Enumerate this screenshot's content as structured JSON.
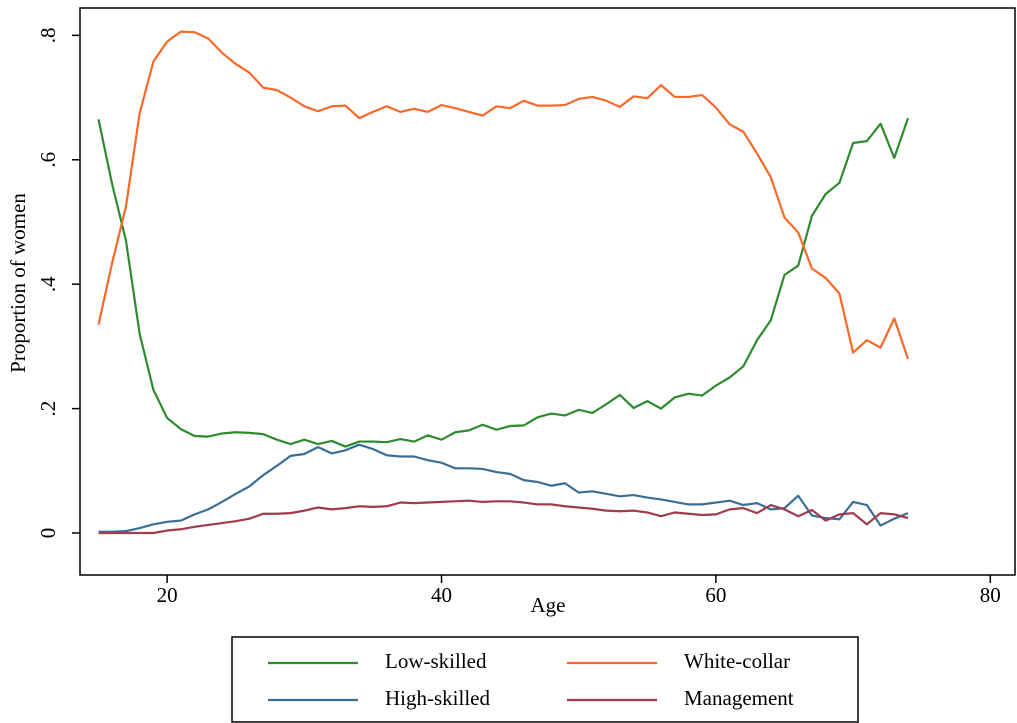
{
  "chart_data": {
    "type": "line",
    "x_label": "Age",
    "y_label": "Proportion of women",
    "xlim": [
      13.65,
      81.8
    ],
    "ylim": [
      -0.0675,
      0.844
    ],
    "xticks": [
      20,
      40,
      60,
      80
    ],
    "yticks": [
      0,
      {
        "value": 0.2,
        "label": ".2"
      },
      {
        "value": 0.4,
        "label": ".4"
      },
      {
        "value": 0.6,
        "label": ".6"
      },
      {
        "value": 0.8,
        "label": ".8"
      }
    ],
    "x": [
      15,
      16,
      17,
      18,
      19,
      20,
      21,
      22,
      23,
      24,
      25,
      26,
      27,
      28,
      29,
      30,
      31,
      32,
      33,
      34,
      35,
      36,
      37,
      38,
      39,
      40,
      41,
      42,
      43,
      44,
      45,
      46,
      47,
      48,
      49,
      50,
      51,
      52,
      53,
      54,
      55,
      56,
      57,
      58,
      59,
      60,
      61,
      62,
      63,
      64,
      65,
      66,
      67,
      68,
      69,
      70,
      71,
      72,
      73,
      74
    ],
    "series": [
      {
        "name": "Low-skilled",
        "color": "#2e8b2e",
        "values": [
          0.665,
          0.56,
          0.47,
          0.32,
          0.23,
          0.185,
          0.167,
          0.156,
          0.155,
          0.16,
          0.162,
          0.161,
          0.159,
          0.15,
          0.143,
          0.15,
          0.143,
          0.148,
          0.139,
          0.147,
          0.147,
          0.146,
          0.151,
          0.147,
          0.157,
          0.15,
          0.162,
          0.165,
          0.174,
          0.166,
          0.172,
          0.173,
          0.186,
          0.192,
          0.189,
          0.198,
          0.193,
          0.207,
          0.222,
          0.201,
          0.212,
          0.2,
          0.218,
          0.224,
          0.221,
          0.237,
          0.25,
          0.268,
          0.31,
          0.342,
          0.415,
          0.43,
          0.51,
          0.545,
          0.563,
          0.627,
          0.63,
          0.658,
          0.603,
          0.667
        ]
      },
      {
        "name": "White-collar",
        "color": "#f8692a",
        "values": [
          0.335,
          0.435,
          0.525,
          0.675,
          0.758,
          0.79,
          0.806,
          0.805,
          0.795,
          0.772,
          0.754,
          0.74,
          0.716,
          0.712,
          0.7,
          0.686,
          0.678,
          0.686,
          0.687,
          0.667,
          0.677,
          0.686,
          0.677,
          0.682,
          0.677,
          0.688,
          0.683,
          0.677,
          0.671,
          0.686,
          0.683,
          0.695,
          0.687,
          0.687,
          0.688,
          0.698,
          0.701,
          0.695,
          0.685,
          0.702,
          0.699,
          0.72,
          0.701,
          0.701,
          0.704,
          0.684,
          0.657,
          0.645,
          0.61,
          0.572,
          0.507,
          0.483,
          0.425,
          0.41,
          0.385,
          0.29,
          0.31,
          0.298,
          0.345,
          0.28
        ]
      },
      {
        "name": "High-skilled",
        "color": "#3b6e96",
        "values": [
          0.002,
          0.002,
          0.003,
          0.008,
          0.014,
          0.018,
          0.02,
          0.03,
          0.038,
          0.05,
          0.063,
          0.075,
          0.093,
          0.108,
          0.124,
          0.127,
          0.138,
          0.128,
          0.133,
          0.142,
          0.135,
          0.125,
          0.123,
          0.123,
          0.117,
          0.113,
          0.104,
          0.104,
          0.103,
          0.098,
          0.095,
          0.085,
          0.082,
          0.076,
          0.08,
          0.065,
          0.067,
          0.063,
          0.059,
          0.061,
          0.057,
          0.054,
          0.05,
          0.046,
          0.046,
          0.049,
          0.052,
          0.045,
          0.048,
          0.038,
          0.04,
          0.06,
          0.028,
          0.024,
          0.022,
          0.05,
          0.045,
          0.012,
          0.023,
          0.032
        ]
      },
      {
        "name": "Management",
        "color": "#a03c4e",
        "values": [
          0,
          0,
          0,
          0,
          0,
          0.004,
          0.006,
          0.01,
          0.013,
          0.016,
          0.019,
          0.023,
          0.031,
          0.031,
          0.032,
          0.036,
          0.041,
          0.038,
          0.04,
          0.043,
          0.042,
          0.043,
          0.049,
          0.048,
          0.049,
          0.05,
          0.051,
          0.052,
          0.05,
          0.051,
          0.051,
          0.049,
          0.046,
          0.046,
          0.043,
          0.041,
          0.039,
          0.036,
          0.035,
          0.036,
          0.033,
          0.027,
          0.033,
          0.031,
          0.029,
          0.03,
          0.038,
          0.04,
          0.032,
          0.045,
          0.038,
          0.027,
          0.037,
          0.02,
          0.03,
          0.032,
          0.014,
          0.032,
          0.03,
          0.024
        ]
      }
    ]
  }
}
